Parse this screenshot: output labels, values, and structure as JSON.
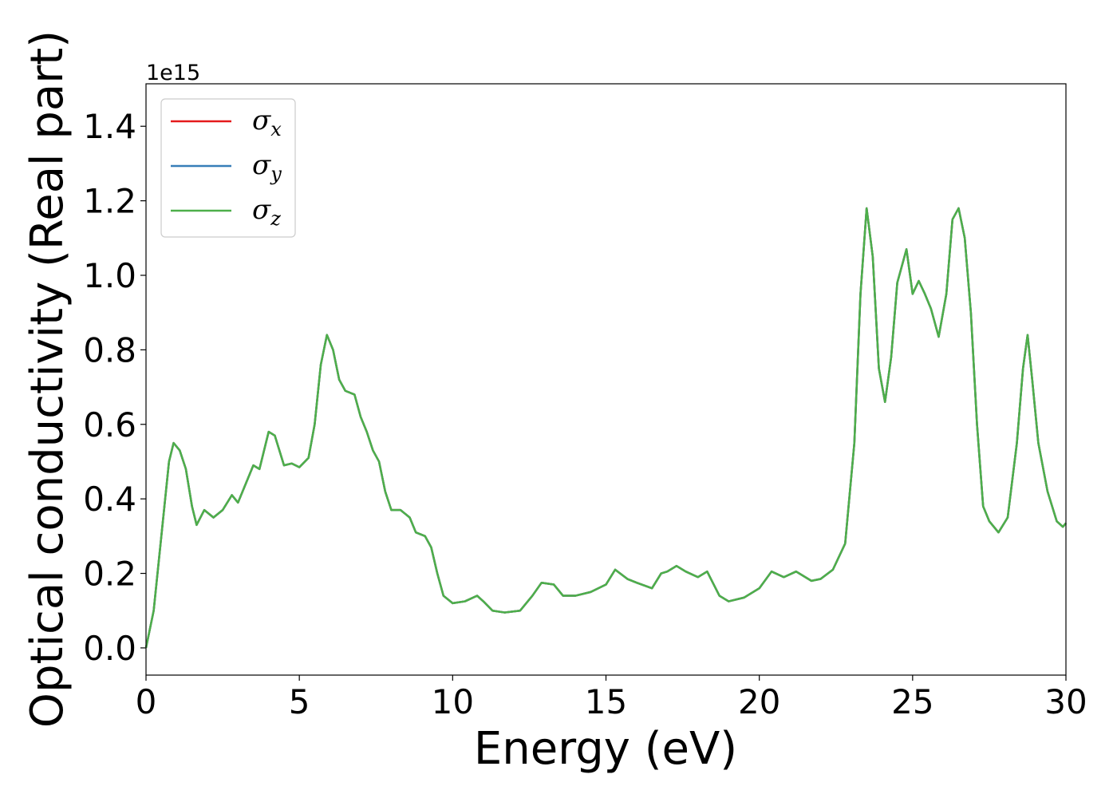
{
  "chart_data": {
    "type": "line",
    "xlabel": "Energy (eV)",
    "ylabel": "Optical conductivity (Real part)",
    "y_offset_label": "1e15",
    "xlim": [
      0,
      30
    ],
    "ylim": [
      -0.073,
      1.514
    ],
    "xticks": [
      0,
      5,
      10,
      15,
      20,
      25,
      30
    ],
    "yticks": [
      {
        "value": 0,
        "label": "0.0"
      },
      0.2,
      0.4,
      0.6,
      0.8,
      {
        "value": 1,
        "label": "1.0"
      },
      1.2,
      1.4
    ],
    "legend": "upper left",
    "grid": false,
    "x": [
      0,
      0.25,
      0.5,
      0.75,
      0.9,
      1.1,
      1.3,
      1.5,
      1.65,
      1.9,
      2.2,
      2.5,
      2.8,
      3.0,
      3.2,
      3.5,
      3.7,
      4.0,
      4.2,
      4.5,
      4.75,
      5.0,
      5.3,
      5.5,
      5.7,
      5.9,
      6.1,
      6.3,
      6.5,
      6.8,
      7.0,
      7.2,
      7.4,
      7.6,
      7.8,
      8.0,
      8.3,
      8.6,
      8.8,
      9.1,
      9.3,
      9.5,
      9.7,
      10.0,
      10.4,
      10.8,
      11.0,
      11.3,
      11.7,
      12.2,
      12.6,
      12.9,
      13.3,
      13.6,
      14.0,
      14.5,
      15.0,
      15.3,
      15.7,
      16.0,
      16.5,
      16.8,
      17.0,
      17.3,
      17.6,
      18.0,
      18.3,
      18.7,
      19.0,
      19.5,
      20.0,
      20.4,
      20.8,
      21.2,
      21.7,
      22.0,
      22.4,
      22.8,
      23.1,
      23.3,
      23.5,
      23.7,
      23.9,
      24.1,
      24.3,
      24.5,
      24.8,
      25.0,
      25.2,
      25.4,
      25.6,
      25.85,
      26.1,
      26.3,
      26.5,
      26.7,
      26.9,
      27.1,
      27.3,
      27.5,
      27.8,
      28.1,
      28.4,
      28.6,
      28.75,
      28.9,
      29.1,
      29.4,
      29.7,
      29.9,
      30
    ],
    "series": [
      {
        "name": "σx",
        "color": "#e41a1c",
        "values": [
          0.0,
          0.1,
          0.3,
          0.5,
          0.55,
          0.53,
          0.48,
          0.38,
          0.33,
          0.37,
          0.35,
          0.37,
          0.41,
          0.39,
          0.43,
          0.49,
          0.48,
          0.58,
          0.57,
          0.49,
          0.495,
          0.485,
          0.51,
          0.6,
          0.76,
          0.84,
          0.8,
          0.72,
          0.69,
          0.68,
          0.62,
          0.58,
          0.53,
          0.5,
          0.42,
          0.37,
          0.37,
          0.35,
          0.31,
          0.3,
          0.27,
          0.2,
          0.14,
          0.12,
          0.125,
          0.14,
          0.125,
          0.1,
          0.095,
          0.1,
          0.14,
          0.175,
          0.17,
          0.14,
          0.14,
          0.15,
          0.17,
          0.21,
          0.185,
          0.175,
          0.16,
          0.2,
          0.205,
          0.22,
          0.205,
          0.19,
          0.205,
          0.14,
          0.125,
          0.135,
          0.16,
          0.205,
          0.19,
          0.205,
          0.18,
          0.185,
          0.21,
          0.28,
          0.55,
          0.95,
          1.18,
          1.05,
          0.75,
          0.66,
          0.78,
          0.98,
          1.07,
          0.95,
          0.985,
          0.95,
          0.91,
          0.835,
          0.95,
          1.15,
          1.18,
          1.1,
          0.9,
          0.6,
          0.38,
          0.34,
          0.31,
          0.35,
          0.55,
          0.75,
          0.84,
          0.72,
          0.55,
          0.42,
          0.34,
          0.325,
          0.335
        ]
      },
      {
        "name": "σy",
        "color": "#377eb8",
        "values": [
          0.0,
          0.1,
          0.3,
          0.5,
          0.55,
          0.53,
          0.48,
          0.38,
          0.33,
          0.37,
          0.35,
          0.37,
          0.41,
          0.39,
          0.43,
          0.49,
          0.48,
          0.58,
          0.57,
          0.49,
          0.495,
          0.485,
          0.51,
          0.6,
          0.76,
          0.84,
          0.8,
          0.72,
          0.69,
          0.68,
          0.62,
          0.58,
          0.53,
          0.5,
          0.42,
          0.37,
          0.37,
          0.35,
          0.31,
          0.3,
          0.27,
          0.2,
          0.14,
          0.12,
          0.125,
          0.14,
          0.125,
          0.1,
          0.095,
          0.1,
          0.14,
          0.175,
          0.17,
          0.14,
          0.14,
          0.15,
          0.17,
          0.21,
          0.185,
          0.175,
          0.16,
          0.2,
          0.205,
          0.22,
          0.205,
          0.19,
          0.205,
          0.14,
          0.125,
          0.135,
          0.16,
          0.205,
          0.19,
          0.205,
          0.18,
          0.185,
          0.21,
          0.28,
          0.55,
          0.95,
          1.18,
          1.05,
          0.75,
          0.66,
          0.78,
          0.98,
          1.07,
          0.95,
          0.985,
          0.95,
          0.91,
          0.835,
          0.95,
          1.15,
          1.18,
          1.1,
          0.9,
          0.6,
          0.38,
          0.34,
          0.31,
          0.35,
          0.55,
          0.75,
          0.84,
          0.72,
          0.55,
          0.42,
          0.34,
          0.325,
          0.335
        ]
      },
      {
        "name": "σz",
        "color": "#4daf4a",
        "values": [
          0.0,
          0.1,
          0.3,
          0.5,
          0.55,
          0.53,
          0.48,
          0.38,
          0.33,
          0.37,
          0.35,
          0.37,
          0.41,
          0.39,
          0.43,
          0.49,
          0.48,
          0.58,
          0.57,
          0.49,
          0.495,
          0.485,
          0.51,
          0.6,
          0.76,
          0.84,
          0.8,
          0.72,
          0.69,
          0.68,
          0.62,
          0.58,
          0.53,
          0.5,
          0.42,
          0.37,
          0.37,
          0.35,
          0.31,
          0.3,
          0.27,
          0.2,
          0.14,
          0.12,
          0.125,
          0.14,
          0.125,
          0.1,
          0.095,
          0.1,
          0.14,
          0.175,
          0.17,
          0.14,
          0.14,
          0.15,
          0.17,
          0.21,
          0.185,
          0.175,
          0.16,
          0.2,
          0.205,
          0.22,
          0.205,
          0.19,
          0.205,
          0.14,
          0.125,
          0.135,
          0.16,
          0.205,
          0.19,
          0.205,
          0.18,
          0.185,
          0.21,
          0.28,
          0.55,
          0.95,
          1.18,
          1.05,
          0.75,
          0.66,
          0.78,
          0.98,
          1.07,
          0.95,
          0.985,
          0.95,
          0.91,
          0.835,
          0.95,
          1.15,
          1.18,
          1.1,
          0.9,
          0.6,
          0.38,
          0.34,
          0.31,
          0.35,
          0.55,
          0.75,
          0.84,
          0.72,
          0.55,
          0.42,
          0.34,
          0.325,
          0.335
        ]
      }
    ]
  }
}
